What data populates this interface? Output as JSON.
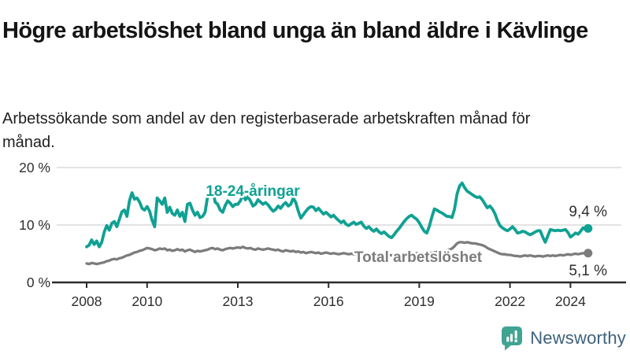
{
  "header": {
    "title": "Högre arbetslöshet bland unga än bland äldre i Kävlinge",
    "subtitle": "Arbetssökande som andel av den registerbaserade arbetskraften månad för månad."
  },
  "branding": {
    "wordmark": "Newsworthy",
    "icon": "bar-chart-speech-bubble",
    "icon_color": "#41a492",
    "wordmark_color": "#3f627b"
  },
  "chart_data": {
    "type": "line",
    "title": "Högre arbetslöshet bland unga än bland äldre i Kävlinge",
    "subtitle": "Arbetssökande som andel av den registerbaserade arbetskraften månad för månad.",
    "x_unit": "month",
    "x_start": "2008-01",
    "x_end": "2024-08",
    "x_tick_labels": [
      "2008",
      "2010",
      "2013",
      "2016",
      "2019",
      "2022",
      "2024"
    ],
    "y_tick_labels": [
      "0 %",
      "10 %",
      "20 %"
    ],
    "ylim": [
      0,
      20
    ],
    "grid": "horizontal",
    "legend_position": "inline-labels",
    "colors": {
      "grid": "#dadada",
      "axis": "#2b2b2b",
      "tick_text": "#2e2e2e",
      "value_text": "#2e2e2e"
    },
    "series": [
      {
        "name": "18-24-åringar",
        "color": "#0fa193",
        "end_value_label": "9,4 %",
        "end_value": 9.4,
        "values": [
          6.2,
          6.5,
          7.4,
          6.6,
          7.2,
          6.2,
          7.0,
          8.8,
          9.9,
          9.1,
          10.3,
          10.6,
          9.7,
          11.0,
          12.3,
          12.6,
          11.5,
          14.2,
          15.6,
          14.5,
          14.7,
          14.0,
          12.9,
          12.6,
          13.2,
          12.4,
          10.8,
          9.7,
          14.7,
          14.2,
          13.6,
          14.7,
          12.2,
          13.1,
          12.0,
          11.7,
          12.6,
          11.5,
          12.2,
          10.6,
          13.6,
          13.8,
          12.6,
          11.7,
          12.2,
          11.3,
          11.5,
          12.2,
          14.9,
          15.8,
          16.1,
          14.0,
          13.6,
          12.6,
          12.2,
          13.4,
          14.2,
          13.8,
          13.2,
          13.6,
          13.6,
          14.2,
          15.2,
          14.4,
          14.9,
          14.2,
          13.3,
          13.6,
          14.4,
          14.0,
          13.6,
          13.9,
          13.5,
          12.9,
          12.4,
          12.7,
          13.3,
          12.9,
          13.5,
          13.9,
          13.3,
          13.6,
          14.7,
          13.9,
          12.4,
          11.2,
          11.8,
          12.4,
          12.9,
          13.2,
          13.1,
          12.5,
          12.9,
          12.4,
          11.9,
          12.2,
          11.8,
          11.4,
          11.7,
          11.2,
          10.8,
          10.4,
          10.7,
          10.1,
          9.9,
          10.2,
          10.5,
          10.1,
          10.3,
          10.5,
          9.8,
          9.4,
          9.7,
          9.2,
          8.9,
          9.3,
          8.8,
          8.5,
          8.8,
          8.4,
          8.0,
          7.8,
          8.3,
          8.9,
          9.4,
          10.0,
          10.6,
          11.1,
          11.5,
          11.7,
          11.3,
          11.0,
          10.4,
          9.6,
          8.9,
          8.6,
          9.8,
          11.4,
          12.8,
          12.6,
          12.3,
          12.1,
          11.8,
          11.5,
          11.5,
          11.3,
          12.8,
          15.4,
          16.8,
          17.3,
          16.5,
          15.9,
          15.6,
          15.3,
          15.0,
          14.8,
          14.9,
          14.4,
          13.7,
          13.0,
          13.3,
          12.8,
          12.0,
          10.8,
          9.9,
          9.5,
          9.2,
          9.0,
          9.3,
          9.7,
          9.2,
          8.6,
          8.7,
          8.9,
          8.8,
          8.5,
          8.3,
          8.5,
          8.8,
          9.0,
          9.0,
          7.9,
          7.0,
          8.1,
          9.2,
          9.1,
          9.0,
          9.1,
          9.0,
          9.1,
          9.2,
          8.7,
          7.9,
          8.2,
          8.6,
          8.4,
          8.9,
          9.5,
          9.2,
          9.4
        ]
      },
      {
        "name": "Total arbetslöshet",
        "color": "#7c7c7c",
        "end_value_label": "5,1 %",
        "end_value": 5.1,
        "values": [
          3.3,
          3.2,
          3.4,
          3.3,
          3.2,
          3.3,
          3.4,
          3.5,
          3.7,
          3.8,
          4.0,
          4.1,
          4.0,
          4.2,
          4.3,
          4.5,
          4.7,
          4.8,
          5.0,
          5.2,
          5.3,
          5.5,
          5.6,
          5.8,
          6.0,
          5.9,
          5.8,
          5.6,
          5.7,
          5.9,
          5.8,
          5.9,
          5.6,
          5.7,
          5.5,
          5.6,
          5.8,
          5.6,
          5.7,
          5.4,
          5.6,
          5.7,
          5.5,
          5.3,
          5.5,
          5.4,
          5.5,
          5.6,
          5.7,
          5.9,
          6.0,
          5.8,
          5.9,
          5.7,
          5.6,
          5.8,
          5.9,
          6.0,
          5.9,
          6.0,
          6.1,
          6.0,
          6.2,
          6.0,
          5.9,
          6.0,
          5.8,
          5.7,
          5.9,
          5.8,
          5.7,
          5.8,
          5.9,
          5.8,
          5.7,
          5.6,
          5.7,
          5.5,
          5.4,
          5.6,
          5.5,
          5.4,
          5.5,
          5.3,
          5.4,
          5.2,
          5.3,
          5.1,
          5.2,
          5.3,
          5.2,
          5.1,
          5.2,
          5.0,
          5.1,
          5.2,
          5.1,
          5.0,
          5.1,
          5.0,
          4.9,
          5.0,
          5.1,
          5.0,
          4.9,
          5.0,
          4.9,
          5.0,
          4.9,
          4.8,
          4.9,
          5.0,
          4.9,
          4.8,
          4.9,
          4.8,
          4.7,
          4.8,
          4.9,
          4.8,
          4.8,
          4.7,
          4.8,
          4.9,
          4.8,
          4.9,
          5.0,
          4.9,
          5.0,
          5.1,
          5.0,
          5.1,
          5.0,
          5.1,
          5.0,
          5.1,
          5.2,
          5.1,
          5.2,
          5.3,
          5.2,
          5.3,
          5.4,
          5.5,
          5.7,
          5.9,
          6.3,
          6.8,
          7.0,
          7.0,
          6.9,
          7.0,
          6.9,
          6.8,
          6.8,
          6.7,
          6.6,
          6.5,
          6.3,
          6.0,
          5.8,
          5.6,
          5.4,
          5.2,
          5.0,
          4.9,
          4.9,
          4.8,
          4.8,
          4.7,
          4.6,
          4.6,
          4.5,
          4.6,
          4.7,
          4.6,
          4.7,
          4.6,
          4.5,
          4.6,
          4.6,
          4.5,
          4.6,
          4.7,
          4.6,
          4.7,
          4.6,
          4.7,
          4.8,
          4.7,
          4.8,
          4.9,
          4.8,
          4.9,
          5.0,
          4.9,
          5.0,
          5.1,
          5.0,
          5.1
        ]
      }
    ]
  }
}
